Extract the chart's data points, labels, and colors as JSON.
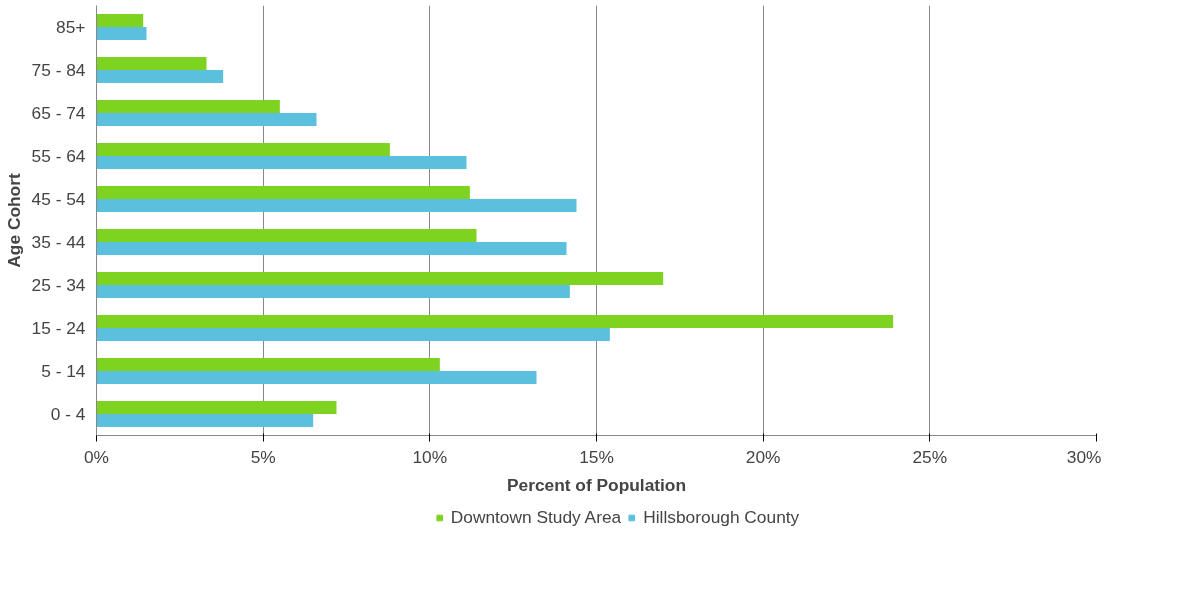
{
  "chart_data": {
    "type": "bar",
    "orientation": "horizontal",
    "xlabel": "Percent of Population",
    "ylabel": "Age Cohort",
    "categories": [
      "85+",
      "75 - 84",
      "65 - 74",
      "55 - 64",
      "45 - 54",
      "35 - 44",
      "25 - 34",
      "15 - 24",
      "5 - 14",
      "0 - 4"
    ],
    "series": [
      {
        "name": "Downtown Study Area",
        "color": "#7ed321",
        "values": [
          1.4,
          3.3,
          5.5,
          8.8,
          11.2,
          11.4,
          17.0,
          23.9,
          10.3,
          7.2
        ]
      },
      {
        "name": "Hillsborough County",
        "color": "#5bc0de",
        "values": [
          1.5,
          3.8,
          6.6,
          11.1,
          14.4,
          14.1,
          14.2,
          15.4,
          13.2,
          6.5
        ]
      }
    ],
    "xlim": [
      0,
      30
    ],
    "xticks": [
      {
        "value": 0,
        "label": "0%"
      },
      {
        "value": 5,
        "label": "5%"
      },
      {
        "value": 10,
        "label": "10%"
      },
      {
        "value": 15,
        "label": "15%"
      },
      {
        "value": 20,
        "label": "20%"
      },
      {
        "value": 25,
        "label": "25%"
      },
      {
        "value": 30,
        "label": "30%"
      }
    ],
    "grid": "x",
    "legend": "bottom"
  }
}
